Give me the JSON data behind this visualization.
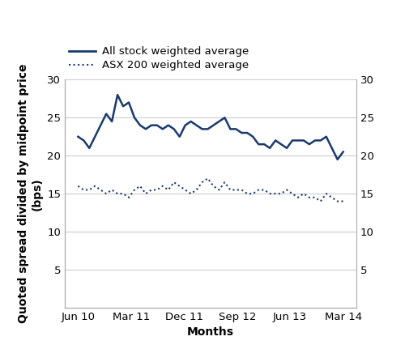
{
  "title": "",
  "xlabel": "Months",
  "ylabel": "Quoted spread divided by midpoint price\n(bps)",
  "ylim": [
    0,
    30
  ],
  "yticks": [
    5,
    10,
    15,
    20,
    25,
    30
  ],
  "line_color": "#1a3a6b",
  "figsize": [
    5.0,
    4.47
  ],
  "dpi": 100,
  "legend_solid": "All stock weighted average",
  "legend_dotted": "ASX 200 weighted average",
  "xtick_labels": [
    "Jun 10",
    "Mar 11",
    "Dec 11",
    "Sep 12",
    "Jun 13",
    "Mar 14"
  ],
  "all_stock": [
    22.5,
    22.0,
    21.0,
    22.5,
    24.0,
    25.5,
    24.5,
    28.0,
    26.5,
    27.0,
    25.0,
    24.0,
    23.5,
    24.0,
    24.0,
    23.5,
    24.0,
    23.5,
    22.5,
    24.0,
    24.5,
    24.0,
    23.5,
    23.5,
    24.0,
    24.5,
    25.0,
    23.5,
    23.5,
    23.0,
    23.0,
    22.5,
    21.5,
    21.5,
    21.0,
    22.0,
    21.5,
    21.0,
    22.0,
    22.0,
    22.0,
    21.5,
    22.0,
    22.0,
    22.5,
    21.0,
    19.5,
    20.5
  ],
  "asx200": [
    16.0,
    15.5,
    15.5,
    16.0,
    15.5,
    15.0,
    15.5,
    15.0,
    15.0,
    14.5,
    15.5,
    16.0,
    15.0,
    15.5,
    15.5,
    16.0,
    15.5,
    16.5,
    16.0,
    15.5,
    15.0,
    15.5,
    16.5,
    17.0,
    16.0,
    15.5,
    16.5,
    15.5,
    15.5,
    15.5,
    15.0,
    15.0,
    15.5,
    15.5,
    15.0,
    15.0,
    15.0,
    15.5,
    15.0,
    14.5,
    15.0,
    14.5,
    14.5,
    14.0,
    15.0,
    14.5,
    14.0,
    14.0
  ],
  "legend_fontsize": 9.5,
  "axis_label_fontsize": 10,
  "tick_fontsize": 9.5,
  "grid_color": "#cccccc",
  "spine_color": "#aaaaaa"
}
